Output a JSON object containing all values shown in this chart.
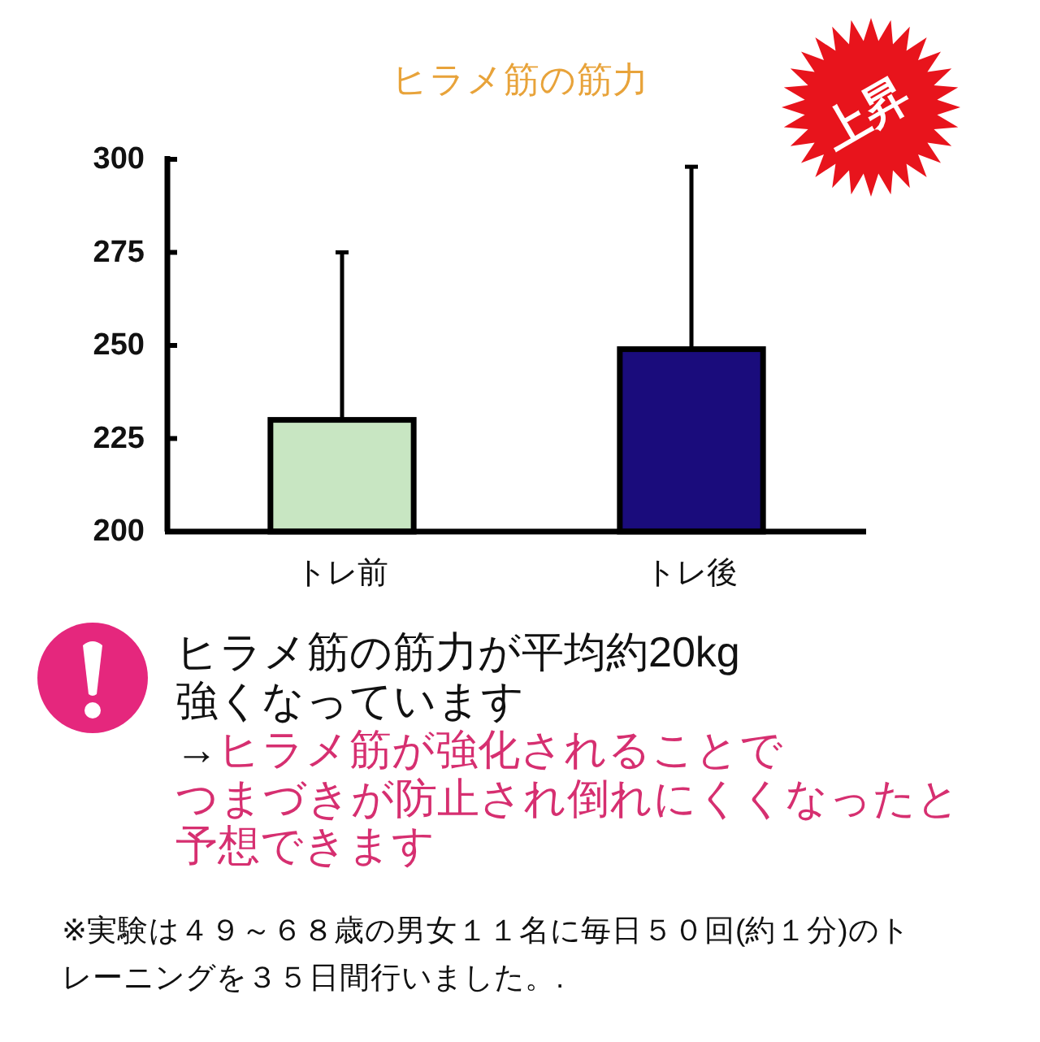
{
  "chart_data": {
    "type": "bar",
    "title": "ヒラメ筋の筋力",
    "categories": [
      "トレ前",
      "トレ後"
    ],
    "values": [
      230,
      249
    ],
    "colors": [
      "#c8e6c2",
      "#1a0c7c"
    ],
    "errors": [
      [
        230,
        275
      ],
      [
        249,
        298
      ]
    ],
    "ylim": [
      200,
      300
    ],
    "yticks": [
      200,
      225,
      250,
      275,
      300
    ],
    "annotations": [
      "上昇",
      "ヒラメ筋の筋力が平均約20kg",
      "強くなっています",
      "→",
      "ヒラメ筋が強化されることで",
      "つまづきが防止され倒れにくくなったと",
      "予想できます",
      "※実験は４９～６８歳の男女１１名に毎日５０回(約１分)のト",
      "レーニングを３５日間行いました。."
    ]
  }
}
